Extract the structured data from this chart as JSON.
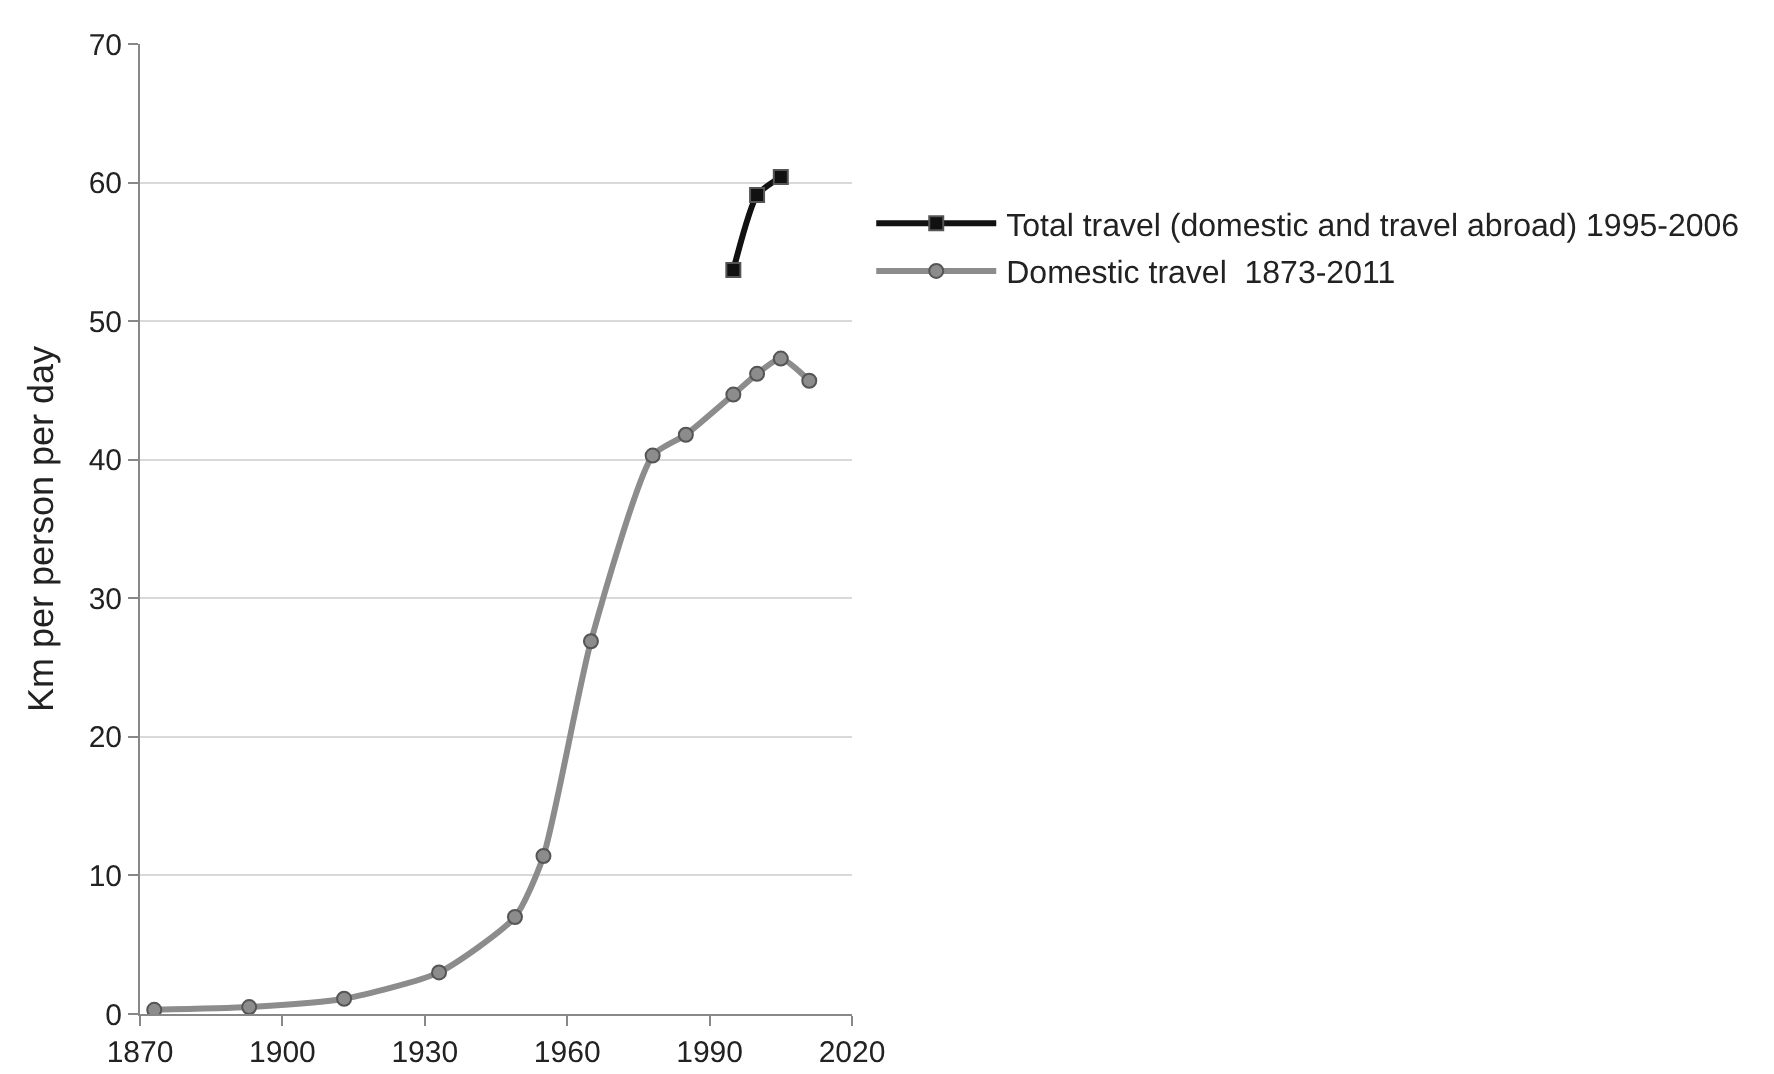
{
  "chart_data": {
    "type": "line",
    "ylabel": "Km per person per day",
    "xlim": [
      1870,
      2020
    ],
    "xticks": [
      1870,
      1900,
      1930,
      1960,
      1990,
      2020
    ],
    "ylim": [
      0,
      70
    ],
    "yticks": [
      0,
      10,
      20,
      30,
      40,
      50,
      60,
      70
    ],
    "grid": "y",
    "legend": "right",
    "line_style": "solid",
    "series": [
      {
        "name": "Total travel (domestic and travel abroad) 1995-2006",
        "color": "#111111",
        "marker": "square",
        "x": [
          1995,
          2000,
          2005
        ],
        "values": [
          53.7,
          59.1,
          60.4
        ]
      },
      {
        "name": "Domestic travel  1873-2011",
        "color": "#8c8c8c",
        "marker": "circle",
        "x": [
          1873,
          1893,
          1913,
          1933,
          1949,
          1955,
          1965,
          1978,
          1985,
          1995,
          2000,
          2005,
          2011
        ],
        "values": [
          0.3,
          0.5,
          1.1,
          3.0,
          7.0,
          11.4,
          26.9,
          40.3,
          41.8,
          44.7,
          46.2,
          47.3,
          45.7
        ]
      }
    ]
  }
}
